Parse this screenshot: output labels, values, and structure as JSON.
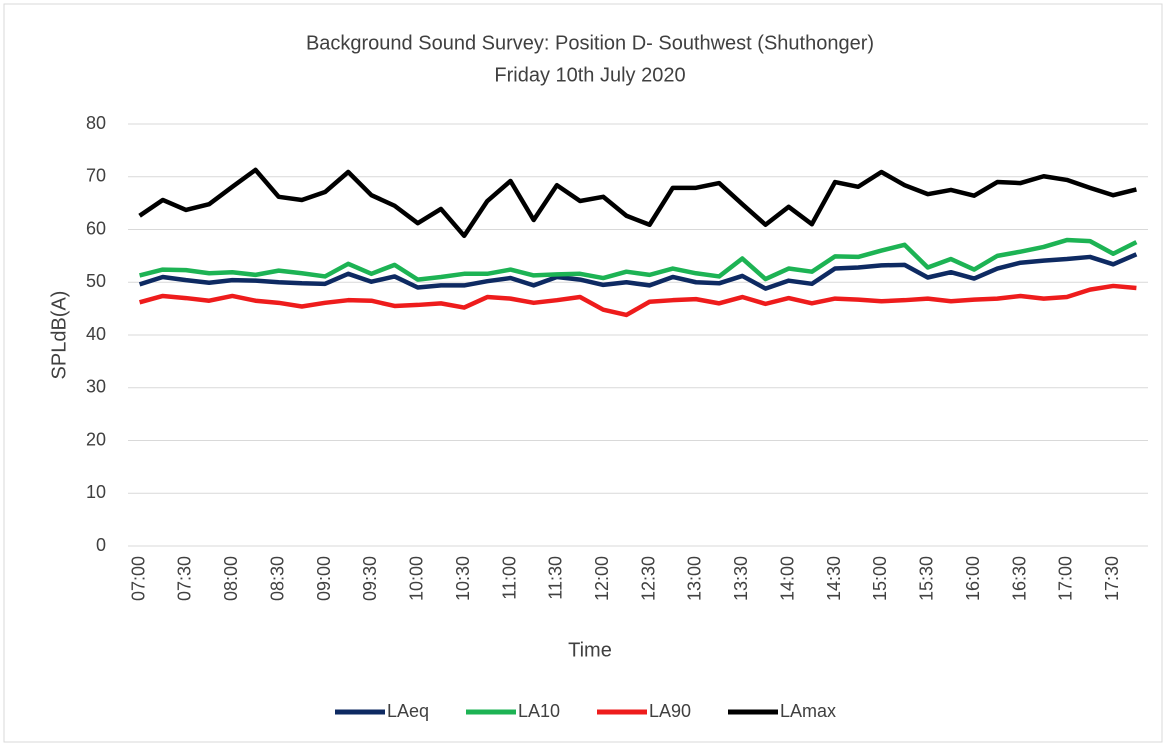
{
  "chart_data": {
    "type": "line",
    "title": "Background Sound Survey: Position D-  Southwest (Shuthonger)",
    "subtitle": "Friday 10th July 2020",
    "x_label": "Time",
    "y_label": "SPLdB(A)",
    "categories": [
      "07:00",
      null,
      "07:30",
      null,
      "08:00",
      null,
      "08:30",
      null,
      "09:00",
      null,
      "09:30",
      null,
      "10:00",
      null,
      "10:30",
      null,
      "11:00",
      null,
      "11:30",
      null,
      "12:00",
      null,
      "12:30",
      null,
      "13:00",
      null,
      "13:30",
      null,
      "14:00",
      null,
      "14:30",
      null,
      "15:00",
      null,
      "15:30",
      null,
      "16:00",
      null,
      "16:30",
      null,
      "17:00",
      null,
      "17:30",
      null
    ],
    "series": [
      {
        "name": "LAeq",
        "color": "#0e2a62",
        "values": [
          49.6,
          51.0,
          50.4,
          49.9,
          50.4,
          50.3,
          50.0,
          49.8,
          49.7,
          51.6,
          50.1,
          51.1,
          49.0,
          49.4,
          49.4,
          50.2,
          50.8,
          49.4,
          51.0,
          50.5,
          49.5,
          50.0,
          49.4,
          51.0,
          50.0,
          49.8,
          51.2,
          48.8,
          50.3,
          49.7,
          52.6,
          52.8,
          53.2,
          53.3,
          50.9,
          51.9,
          50.7,
          52.6,
          53.7,
          54.1,
          54.4,
          54.8,
          53.4,
          55.3
        ]
      },
      {
        "name": "LA10",
        "color": "#1db354",
        "values": [
          51.3,
          52.4,
          52.3,
          51.7,
          51.9,
          51.4,
          52.2,
          51.7,
          51.1,
          53.5,
          51.6,
          53.3,
          50.5,
          51.0,
          51.6,
          51.6,
          52.4,
          51.3,
          51.5,
          51.6,
          50.8,
          52.0,
          51.4,
          52.6,
          51.7,
          51.1,
          54.5,
          50.6,
          52.6,
          52.0,
          54.9,
          54.8,
          56.0,
          57.1,
          52.8,
          54.4,
          52.4,
          55.0,
          55.8,
          56.7,
          58.0,
          57.8,
          55.4,
          57.6
        ]
      },
      {
        "name": "LA90",
        "color": "#ee1c1c",
        "values": [
          46.2,
          47.4,
          47.0,
          46.5,
          47.4,
          46.5,
          46.1,
          45.4,
          46.1,
          46.6,
          46.5,
          45.5,
          45.7,
          46.0,
          45.2,
          47.2,
          46.9,
          46.1,
          46.6,
          47.2,
          44.8,
          43.8,
          46.3,
          46.6,
          46.8,
          46.0,
          47.2,
          45.9,
          47.0,
          46.0,
          46.9,
          46.7,
          46.4,
          46.6,
          46.9,
          46.4,
          46.7,
          46.9,
          47.4,
          46.9,
          47.2,
          48.6,
          49.3,
          48.9
        ]
      },
      {
        "name": "LAmax",
        "color": "#000000",
        "values": [
          62.6,
          65.6,
          63.7,
          64.8,
          68.1,
          71.3,
          66.2,
          65.6,
          67.1,
          70.9,
          66.5,
          64.5,
          61.2,
          63.9,
          58.8,
          65.4,
          69.2,
          61.8,
          68.4,
          65.4,
          66.2,
          62.6,
          60.9,
          67.9,
          67.9,
          68.8,
          64.8,
          60.9,
          64.3,
          61.0,
          69.0,
          68.1,
          70.9,
          68.4,
          66.7,
          67.5,
          66.4,
          69.0,
          68.8,
          70.1,
          69.4,
          67.9,
          66.5,
          67.6
        ]
      }
    ],
    "ylim": [
      0,
      80
    ],
    "yticks": [
      0,
      10,
      20,
      30,
      40,
      50,
      60,
      70,
      80
    ],
    "grid": true,
    "legend": "bottom"
  }
}
